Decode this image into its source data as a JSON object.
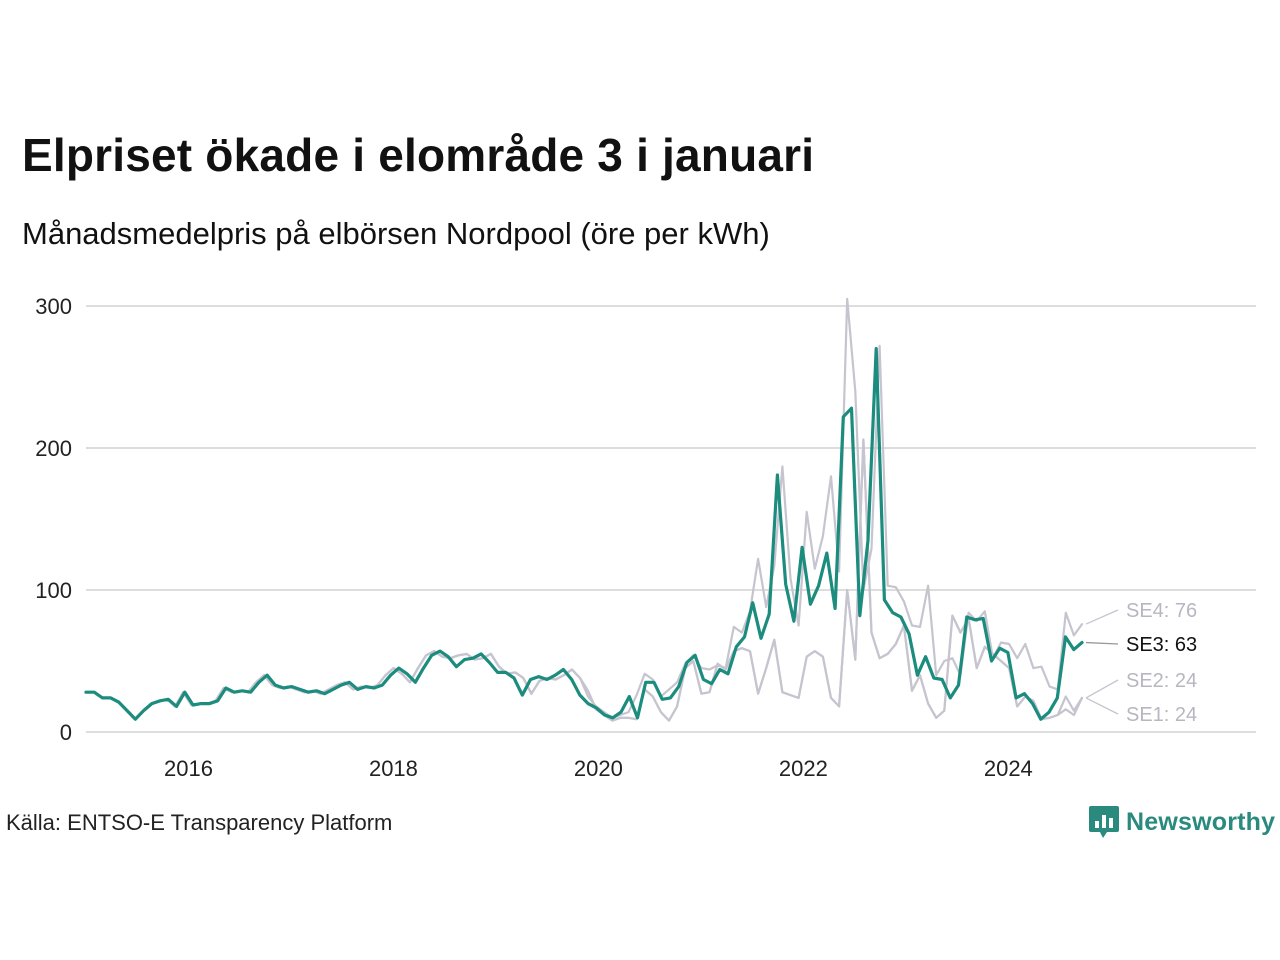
{
  "title": "Elpriset ökade i elområde 3 i januari",
  "subtitle": "Månadsmedelpris på elbörsen Nordpool (öre per kWh)",
  "source": "Källa: ENTSO-E Transparency Platform",
  "brand": {
    "name": "Newsworthy",
    "icon": "bar-chart-icon",
    "color": "#2a8a7d"
  },
  "chart_data": {
    "type": "line",
    "title": "Elpriset ökade i elområde 3 i januari",
    "subtitle": "Månadsmedelpris på elbörsen Nordpool (öre per kWh)",
    "ylabel": "",
    "xlabel": "",
    "x_start": "2015-01",
    "x_step": "month",
    "xlim": [
      "2015-01",
      "2026-06"
    ],
    "ylim": [
      0,
      300
    ],
    "yticks": [
      0,
      100,
      200,
      300
    ],
    "xticks": [
      "2016",
      "2018",
      "2020",
      "2022",
      "2024"
    ],
    "grid": true,
    "legend": "end-labels",
    "series": [
      {
        "name": "SE1",
        "color": "#c6c4cf",
        "end_label": "SE1: 24",
        "values": [
          28,
          28,
          24,
          24,
          21,
          15,
          9,
          15,
          20,
          22,
          23,
          18,
          28,
          19,
          20,
          20,
          22,
          31,
          28,
          29,
          28,
          35,
          40,
          33,
          31,
          32,
          30,
          28,
          29,
          27,
          30,
          33,
          35,
          30,
          32,
          31,
          33,
          40,
          45,
          41,
          35,
          45,
          54,
          57,
          53,
          52,
          54,
          55,
          51,
          52,
          55,
          46,
          41,
          42,
          38,
          27,
          36,
          38,
          37,
          40,
          44,
          38,
          29,
          16,
          12,
          8,
          10,
          10,
          9,
          30,
          25,
          14,
          8,
          18,
          45,
          50,
          27,
          28,
          48,
          44,
          57,
          59,
          57,
          27,
          45,
          65,
          28,
          26,
          24,
          53,
          57,
          53,
          24,
          18,
          100,
          51,
          206,
          70,
          52,
          55,
          62,
          75,
          29,
          40,
          20,
          10,
          15,
          82,
          70,
          80,
          45,
          60,
          55,
          50,
          45,
          18,
          25,
          22,
          9,
          10,
          12,
          16,
          12,
          24
        ]
      },
      {
        "name": "SE2",
        "color": "#c6c4cf",
        "end_label": "SE2: 24",
        "values": [
          28,
          28,
          24,
          24,
          21,
          15,
          9,
          15,
          20,
          22,
          23,
          18,
          28,
          19,
          20,
          20,
          22,
          31,
          28,
          29,
          28,
          35,
          40,
          33,
          31,
          32,
          30,
          28,
          29,
          27,
          30,
          33,
          35,
          30,
          32,
          31,
          33,
          40,
          45,
          41,
          35,
          45,
          54,
          57,
          53,
          52,
          54,
          55,
          51,
          52,
          55,
          46,
          41,
          42,
          38,
          27,
          36,
          38,
          37,
          40,
          44,
          38,
          29,
          16,
          12,
          8,
          10,
          10,
          9,
          30,
          25,
          14,
          8,
          18,
          45,
          50,
          27,
          28,
          48,
          44,
          57,
          59,
          57,
          27,
          45,
          65,
          28,
          26,
          24,
          53,
          57,
          53,
          24,
          18,
          100,
          51,
          206,
          70,
          52,
          55,
          62,
          75,
          29,
          40,
          20,
          10,
          15,
          82,
          70,
          80,
          45,
          60,
          55,
          50,
          45,
          18,
          25,
          22,
          9,
          10,
          12,
          25,
          15,
          24
        ]
      },
      {
        "name": "SE4",
        "color": "#c6c4cf",
        "end_label": "SE4: 76",
        "values": [
          28,
          28,
          24,
          24,
          21,
          15,
          9,
          15,
          20,
          22,
          23,
          18,
          28,
          19,
          20,
          20,
          22,
          31,
          28,
          29,
          28,
          35,
          40,
          33,
          31,
          32,
          30,
          28,
          29,
          27,
          30,
          33,
          35,
          30,
          32,
          31,
          33,
          40,
          45,
          41,
          35,
          45,
          54,
          57,
          53,
          52,
          54,
          55,
          51,
          52,
          55,
          46,
          41,
          42,
          38,
          27,
          36,
          38,
          37,
          40,
          44,
          38,
          25,
          18,
          14,
          10,
          12,
          14,
          26,
          41,
          37,
          25,
          30,
          35,
          48,
          54,
          45,
          44,
          47,
          45,
          74,
          70,
          85,
          122,
          88,
          117,
          187,
          108,
          75,
          155,
          115,
          138,
          180,
          113,
          305,
          240,
          100,
          129,
          272,
          103,
          102,
          92,
          75,
          74,
          103,
          40,
          50,
          52,
          40,
          84,
          78,
          85,
          52,
          63,
          62,
          52,
          62,
          45,
          46,
          32,
          30,
          84,
          68,
          76
        ]
      },
      {
        "name": "SE3",
        "color": "#1b8c7e",
        "end_label": "SE3: 63",
        "highlight": true,
        "values": [
          28,
          28,
          24,
          24,
          21,
          15,
          9,
          15,
          20,
          22,
          23,
          18,
          28,
          19,
          20,
          20,
          22,
          31,
          28,
          29,
          28,
          35,
          40,
          33,
          31,
          32,
          30,
          28,
          29,
          27,
          30,
          33,
          35,
          30,
          32,
          31,
          33,
          40,
          45,
          41,
          35,
          45,
          54,
          57,
          53,
          46,
          51,
          52,
          55,
          49,
          42,
          42,
          38,
          26,
          37,
          39,
          37,
          40,
          44,
          37,
          26,
          20,
          17,
          12,
          10,
          14,
          25,
          10,
          35,
          35,
          23,
          24,
          32,
          49,
          54,
          37,
          34,
          44,
          41,
          60,
          67,
          91,
          66,
          83,
          181,
          104,
          78,
          130,
          90,
          103,
          126,
          87,
          222,
          228,
          82,
          135,
          270,
          93,
          84,
          81,
          69,
          40,
          53,
          38,
          37,
          24,
          33,
          81,
          79,
          80,
          50,
          59,
          56,
          24,
          27,
          20,
          9,
          14,
          24,
          67,
          58,
          63
        ]
      }
    ]
  }
}
